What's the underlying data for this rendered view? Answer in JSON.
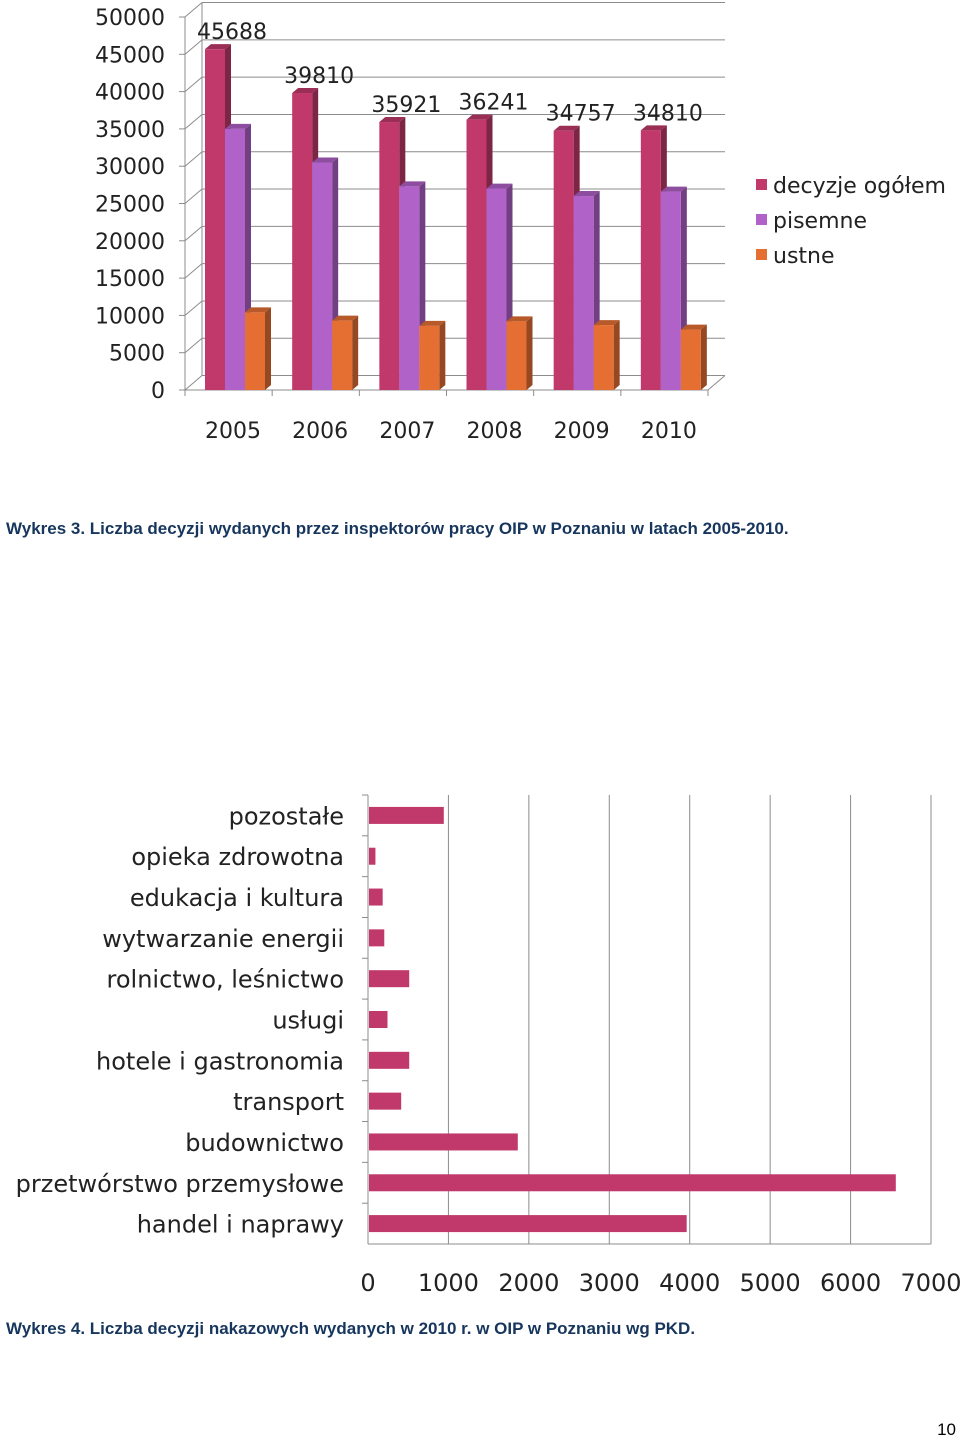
{
  "captions": {
    "chart1": "Wykres 3. Liczba decyzji wydanych przez inspektorów pracy OIP  w Poznaniu w latach 2005-2010.",
    "chart2": "Wykres 4. Liczba decyzji nakazowych wydanych w 2010 r. w OIP w Poznaniu wg PKD."
  },
  "page_number": "10",
  "chart_data": [
    {
      "type": "bar",
      "orientation": "vertical",
      "style": "3d-clustered",
      "categories": [
        "2005",
        "2006",
        "2007",
        "2008",
        "2009",
        "2010"
      ],
      "series": [
        {
          "name": "decyzje ogółem",
          "color": "#c0396a",
          "values": [
            45688,
            39810,
            35921,
            36241,
            34757,
            34810
          ]
        },
        {
          "name": "pisemne",
          "color": "#b062c8",
          "values": [
            35000,
            30500,
            27300,
            27000,
            26000,
            26600
          ]
        },
        {
          "name": "ustne",
          "color": "#e56f33",
          "values": [
            10400,
            9300,
            8600,
            9200,
            8700,
            8100
          ]
        }
      ],
      "data_labels": [
        "45688",
        "39810",
        "35921",
        "36241",
        "34757",
        "34810"
      ],
      "y_ticks": [
        "0",
        "5000",
        "10000",
        "15000",
        "20000",
        "25000",
        "30000",
        "35000",
        "40000",
        "45000",
        "50000"
      ],
      "ylim": [
        0,
        50000
      ],
      "grid": true,
      "legend_position": "right"
    },
    {
      "type": "bar",
      "orientation": "horizontal",
      "categories": [
        "pozostałe",
        "opieka zdrowotna",
        "edukacja i kultura",
        "wytwarzanie energii",
        "rolnictwo, leśnictwo",
        "usługi",
        "hotele i gastronomia",
        "transport",
        "budownictwo",
        "przetwórstwo przemysłowe",
        "handel i  naprawy"
      ],
      "series": [
        {
          "color": "#c0396a",
          "values": [
            930,
            80,
            170,
            190,
            500,
            230,
            500,
            400,
            1850,
            6550,
            3950
          ]
        }
      ],
      "x_ticks": [
        "0",
        "1000",
        "2000",
        "3000",
        "4000",
        "5000",
        "6000",
        "7000"
      ],
      "xlim": [
        0,
        7000
      ],
      "grid": true
    }
  ]
}
